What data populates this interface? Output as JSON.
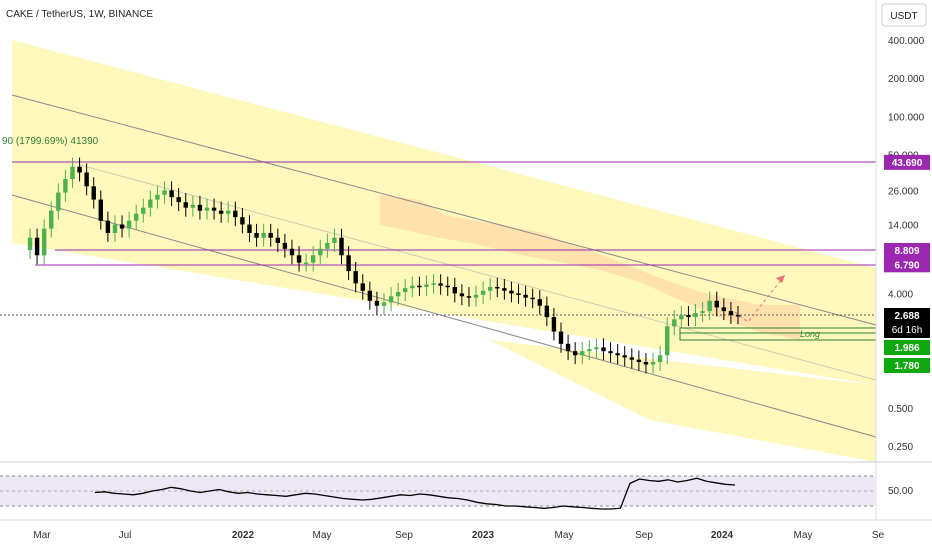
{
  "header": {
    "symbol_title": "CAKE / TetherUS, 1W, BINANCE",
    "currency": "USDT"
  },
  "top_left_label": "90 (1799.69%) 41390",
  "trade_label": "Long",
  "colors": {
    "up": "#4caf50",
    "down": "#000000",
    "channel_fill": "#fff7b0",
    "cloud_fill": "#ffd9a8",
    "level_line": "#9c27b0",
    "level_badge": "#9c27b0",
    "green_badge": "#0fa80f",
    "price_badge": "#000000",
    "rsi_band": "#ede7f6"
  },
  "chart_data": {
    "type": "candlestick",
    "y_scale": "log",
    "y_ticks": [
      {
        "value": 400,
        "label": "400.000"
      },
      {
        "value": 200,
        "label": "200.000"
      },
      {
        "value": 100,
        "label": "100.000"
      },
      {
        "value": 50,
        "label": "50.000"
      },
      {
        "value": 26,
        "label": "26.000"
      },
      {
        "value": 14,
        "label": "14.000"
      },
      {
        "value": 4,
        "label": "4.000"
      },
      {
        "value": 0.5,
        "label": "0.500"
      },
      {
        "value": 0.25,
        "label": "0.250"
      }
    ],
    "x_ticks": [
      "Mar",
      "Jul",
      "2022",
      "May",
      "Sep",
      "2023",
      "May",
      "Sep",
      "2024",
      "May",
      "Se"
    ],
    "price_levels": [
      {
        "value": 43.69,
        "label": "43.690",
        "kind": "resistance"
      },
      {
        "value": 8.809,
        "label": "8.809",
        "kind": "resistance"
      },
      {
        "value": 6.79,
        "label": "6.790",
        "kind": "resistance"
      },
      {
        "value": 1.986,
        "label": "1.986",
        "kind": "support"
      },
      {
        "value": 1.78,
        "label": "1.780",
        "kind": "support"
      }
    ],
    "current_price": {
      "value": 2.688,
      "label": "2.688",
      "countdown": "6d 16h"
    },
    "candles_weekly_close": [
      11,
      8,
      13,
      18,
      25,
      32,
      40,
      36,
      28,
      22,
      15,
      12,
      14,
      13,
      15,
      17,
      19,
      22,
      24,
      26,
      23,
      21,
      19,
      20,
      18,
      19,
      18,
      17,
      18,
      16,
      14,
      12,
      11,
      12,
      11,
      10,
      9,
      8,
      7,
      7,
      8,
      9,
      10,
      11,
      8,
      6,
      4.8,
      4.2,
      3.5,
      3.2,
      3.4,
      3.8,
      4.1,
      4.4,
      4.6,
      4.5,
      4.7,
      4.8,
      4.6,
      4.5,
      4.0,
      3.8,
      3.7,
      3.9,
      4.2,
      4.5,
      4.4,
      4.2,
      4.0,
      3.9,
      3.7,
      3.6,
      3.2,
      2.6,
      2.0,
      1.6,
      1.4,
      1.3,
      1.4,
      1.45,
      1.5,
      1.4,
      1.35,
      1.3,
      1.25,
      1.2,
      1.15,
      1.1,
      1.15,
      1.3,
      2.2,
      2.5,
      2.7,
      2.6,
      2.8,
      2.9,
      3.5,
      3.1,
      2.9,
      2.7,
      2.688
    ],
    "rsi": {
      "ticks": [
        {
          "value": 50,
          "label": "50.00"
        }
      ],
      "upper": 70,
      "lower": 30,
      "values": [
        48,
        49,
        47,
        46,
        45,
        47,
        50,
        52,
        55,
        53,
        50,
        48,
        50,
        52,
        49,
        47,
        48,
        46,
        45,
        44,
        43,
        45,
        47,
        46,
        44,
        42,
        40,
        39,
        38,
        39,
        41,
        43,
        45,
        44,
        46,
        45,
        43,
        41,
        40,
        38,
        35,
        33,
        32,
        30,
        30,
        29,
        28,
        27,
        28,
        30,
        29,
        28,
        27,
        26,
        26,
        27,
        60,
        66,
        64,
        63,
        65,
        62,
        64,
        67,
        63,
        61,
        59,
        58
      ]
    }
  }
}
